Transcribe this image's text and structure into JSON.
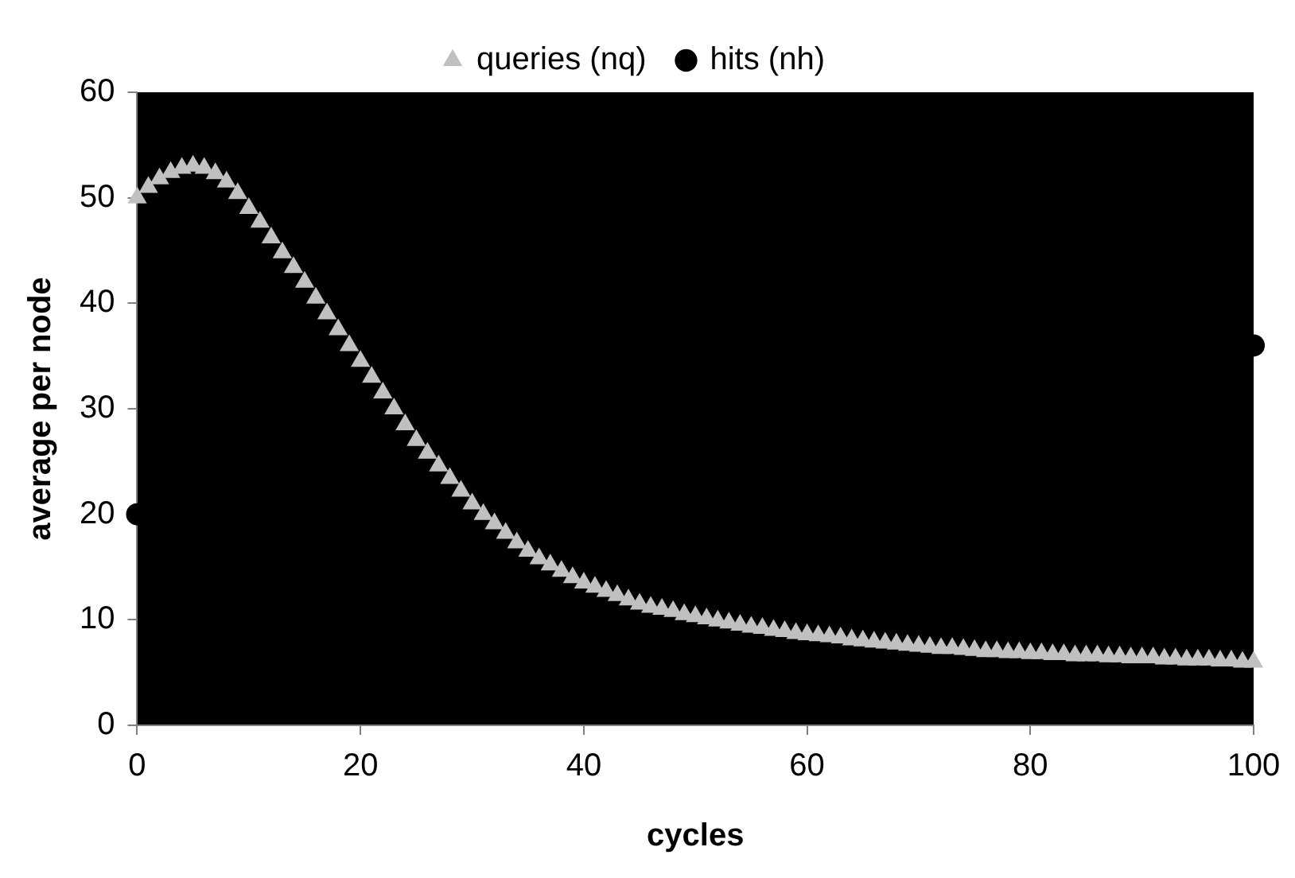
{
  "chart_data": {
    "type": "scatter",
    "xlabel": "cycles",
    "ylabel": "average per node",
    "xlim": [
      0,
      100
    ],
    "xticks": [
      0,
      20,
      40,
      60,
      80,
      100
    ],
    "ylim": [
      0,
      60
    ],
    "yticks": [
      0,
      10,
      20,
      30,
      40,
      50,
      60
    ],
    "grid": false,
    "legend": "top",
    "series": [
      {
        "name": "queries (nq)",
        "color": "#c0c0c0",
        "marker": "triangle",
        "x": [
          0,
          1,
          2,
          3,
          4,
          5,
          6,
          7,
          8,
          9,
          10,
          11,
          12,
          13,
          14,
          15,
          16,
          17,
          18,
          19,
          20,
          21,
          22,
          23,
          24,
          25,
          26,
          27,
          28,
          29,
          30,
          31,
          32,
          33,
          34,
          35,
          36,
          37,
          38,
          39,
          40,
          41,
          42,
          43,
          44,
          45,
          46,
          47,
          48,
          49,
          50,
          51,
          52,
          53,
          54,
          55,
          56,
          57,
          58,
          59,
          60,
          61,
          62,
          63,
          64,
          65,
          66,
          67,
          68,
          69,
          70,
          71,
          72,
          73,
          74,
          75,
          76,
          77,
          78,
          79,
          80,
          81,
          82,
          83,
          84,
          85,
          86,
          87,
          88,
          89,
          90,
          91,
          92,
          93,
          94,
          95,
          96,
          97,
          98,
          99,
          100
        ],
        "values": [
          50,
          51,
          51.8,
          52.4,
          52.8,
          53,
          52.8,
          52.3,
          51.5,
          50.4,
          49,
          47.7,
          46.2,
          44.8,
          43.4,
          42,
          40.5,
          39,
          37.5,
          36,
          34.5,
          33,
          31.5,
          30,
          28.5,
          27,
          25.8,
          24.6,
          23.4,
          22.2,
          21,
          20,
          19.1,
          18.2,
          17.3,
          16.5,
          15.8,
          15.2,
          14.6,
          14,
          13.5,
          13.1,
          12.7,
          12.3,
          11.9,
          11.5,
          11.2,
          11,
          10.8,
          10.5,
          10.3,
          10.1,
          9.9,
          9.7,
          9.5,
          9.3,
          9.2,
          9,
          8.9,
          8.7,
          8.6,
          8.5,
          8.4,
          8.3,
          8.1,
          8,
          7.9,
          7.8,
          7.7,
          7.6,
          7.5,
          7.4,
          7.3,
          7.3,
          7.2,
          7.1,
          7,
          7,
          6.9,
          6.9,
          6.8,
          6.8,
          6.7,
          6.7,
          6.6,
          6.6,
          6.6,
          6.5,
          6.5,
          6.4,
          6.4,
          6.4,
          6.3,
          6.3,
          6.2,
          6.2,
          6.2,
          6.1,
          6.1,
          6,
          6
        ]
      },
      {
        "name": "hits (nh)",
        "color": "#000000",
        "marker": "circle",
        "x": [
          0,
          100
        ],
        "values": [
          20,
          36
        ]
      }
    ]
  }
}
